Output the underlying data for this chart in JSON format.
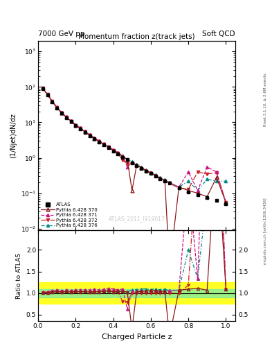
{
  "title_top_left": "7000 GeV pp",
  "title_top_right": "Soft QCD",
  "main_title": "Momentum fraction z(track jets)",
  "ylabel_main": "(1/Njet)dN/dz",
  "ylabel_ratio": "Ratio to ATLAS",
  "xlabel": "Charged Particle z",
  "right_label_top": "Rivet 3.1.10, ≥ 2.6M events",
  "right_label_bottom": "mcplots.cern.ch [arXiv:1306.3436]",
  "watermark": "ATLAS_2011_I919017",
  "atlas_x": [
    0.025,
    0.05,
    0.075,
    0.1,
    0.125,
    0.15,
    0.175,
    0.2,
    0.225,
    0.25,
    0.275,
    0.3,
    0.325,
    0.35,
    0.375,
    0.4,
    0.425,
    0.45,
    0.475,
    0.5,
    0.525,
    0.55,
    0.575,
    0.6,
    0.625,
    0.65,
    0.675,
    0.7,
    0.75,
    0.8,
    0.85,
    0.9,
    0.95,
    1.0
  ],
  "atlas_y": [
    90,
    60,
    38,
    25,
    18,
    13.5,
    10.5,
    8.0,
    6.5,
    5.2,
    4.2,
    3.4,
    2.8,
    2.3,
    1.9,
    1.55,
    1.3,
    1.05,
    0.88,
    0.72,
    0.6,
    0.5,
    0.42,
    0.36,
    0.3,
    0.26,
    0.22,
    0.19,
    0.14,
    0.11,
    0.09,
    0.075,
    0.062,
    0.05
  ],
  "atlas_yerr": [
    4,
    3,
    2,
    1.5,
    1.0,
    0.8,
    0.6,
    0.5,
    0.4,
    0.3,
    0.25,
    0.2,
    0.15,
    0.12,
    0.1,
    0.08,
    0.07,
    0.06,
    0.05,
    0.04,
    0.035,
    0.03,
    0.025,
    0.022,
    0.019,
    0.016,
    0.014,
    0.012,
    0.01,
    0.008,
    0.007,
    0.006,
    0.005,
    0.004
  ],
  "p370_y": [
    91,
    61,
    39,
    26,
    18.5,
    14.0,
    10.8,
    8.3,
    6.7,
    5.4,
    4.3,
    3.5,
    2.9,
    2.4,
    2.0,
    1.6,
    1.35,
    1.1,
    0.9,
    0.12,
    0.62,
    0.52,
    0.44,
    0.38,
    0.32,
    0.27,
    0.23,
    0.0008,
    0.15,
    0.12,
    0.1,
    0.08,
    0.28,
    0.055
  ],
  "p371_y": [
    92,
    62,
    40,
    27,
    19,
    14.5,
    11.2,
    8.6,
    7.0,
    5.6,
    4.5,
    3.7,
    3.0,
    2.5,
    2.1,
    1.7,
    1.4,
    1.15,
    0.55,
    0.75,
    0.63,
    0.53,
    0.44,
    0.38,
    0.32,
    0.27,
    0.23,
    0.2,
    0.15,
    0.4,
    0.12,
    0.55,
    0.4,
    0.055
  ],
  "p372_y": [
    91,
    61,
    39,
    26,
    18.5,
    14.0,
    10.8,
    8.3,
    6.7,
    5.4,
    4.3,
    3.5,
    2.9,
    2.4,
    2.0,
    1.6,
    1.35,
    0.85,
    0.7,
    0.72,
    0.6,
    0.5,
    0.42,
    0.36,
    0.3,
    0.26,
    0.22,
    0.19,
    0.14,
    0.13,
    0.4,
    0.35,
    0.38,
    0.055
  ],
  "p376_y": [
    91,
    61,
    39,
    26,
    18.5,
    14.0,
    10.8,
    8.3,
    6.7,
    5.4,
    4.3,
    3.5,
    2.9,
    2.4,
    2.0,
    1.6,
    1.35,
    1.1,
    0.9,
    0.78,
    0.65,
    0.55,
    0.46,
    0.39,
    0.33,
    0.28,
    0.24,
    0.2,
    0.15,
    0.22,
    0.12,
    0.25,
    0.22,
    0.22
  ],
  "ylim_main": [
    0.009,
    2000
  ],
  "ylim_ratio": [
    0.35,
    2.45
  ],
  "ratio_yticks": [
    0.5,
    1.0,
    1.5,
    2.0
  ],
  "xlim": [
    0.0,
    1.05
  ],
  "color_370": "#8b1a1a",
  "color_371": "#cc1480",
  "color_372": "#cc2020",
  "color_376": "#008b8b",
  "color_atlas": "#000000",
  "green_band_lo": 0.9,
  "green_band_hi": 1.1,
  "yellow_band_lo": 0.75,
  "yellow_band_hi": 1.25
}
